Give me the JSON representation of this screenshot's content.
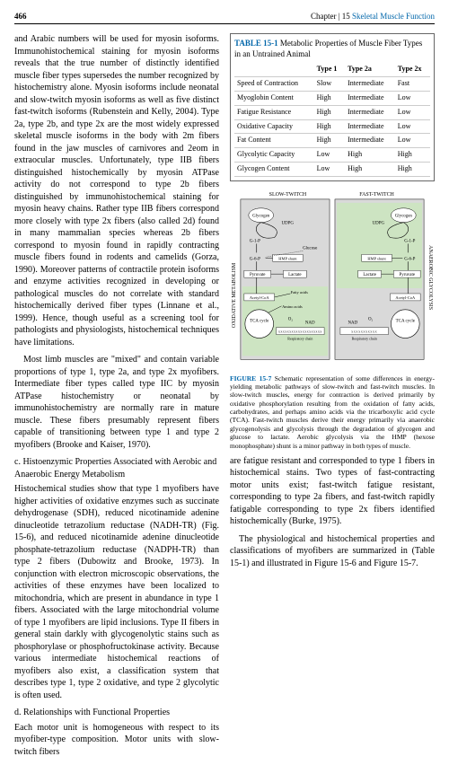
{
  "header": {
    "page_number": "466",
    "chapter_label": "Chapter | 15",
    "chapter_title": "Skeletal Muscle Function"
  },
  "left_column": {
    "para1": "and Arabic numbers will be used for myosin isoforms. Immunohistochemical staining for myosin isoforms reveals that the true number of distinctly identified muscle fiber types supersedes the number recognized by histochemistry alone. Myosin isoforms include neonatal and slow-twitch myosin isoforms as well as five distinct fast-twitch isoforms (Rubenstein and Kelly, 2004). Type 2a, type 2b, and type 2x are the most widely expressed skeletal muscle isoforms in the body with 2m fibers found in the jaw muscles of carnivores and 2eom in extraocular muscles. Unfortunately, type IIB fibers distinguished histochemically by myosin ATPase activity do not correspond to type 2b fibers distinguished by immunohistochemical staining for myosin heavy chains. Rather type IIB fibers correspond more closely with type 2x fibers (also called 2d) found in many mammalian species whereas 2b fibers correspond to myosin found in rapidly contracting muscle fibers found in rodents and camelids (Gorza, 1990). Moreover patterns of contractile protein isoforms and enzyme activities recognized in developing or pathological muscles do not correlate with standard histochemically derived fiber types (Linnane et al., 1999). Hence, though useful as a screening tool for pathologists and physiologists, histochemical techniques have limitations.",
    "para2": "Most limb muscles are \"mixed\" and contain variable proportions of type 1, type 2a, and type 2x myofibers. Intermediate fiber types called type IIC by myosin ATPase histochemistry or neonatal by immunohistochemistry are normally rare in mature muscle. These fibers presumably represent fibers capable of transitioning between type 1 and type 2 myofibers (Brooke and Kaiser, 1970).",
    "subhead_c": "c. Histoenzymic Properties Associated with Aerobic and Anaerobic Energy Metabolism",
    "para3": "Histochemical studies show that type 1 myofibers have higher activities of oxidative enzymes such as succinate dehydrogenase (SDH), reduced nicotinamide adenine dinucleotide tetrazolium reductase (NADH-TR) (Fig. 15-6), and reduced nicotinamide adenine dinucleotide phosphate-tetrazolium reductase (NADPH-TR) than type 2 fibers (Dubowitz and Brooke, 1973). In conjunction with electron microscopic observations, the activities of these enzymes have been localized to mitochondria, which are present in abundance in type 1 fibers. Associated with the large mitochondrial volume of type 1 myofibers are lipid inclusions. Type II fibers in general stain darkly with glycogenolytic stains such as phosphorylase or phosphofructokinase activity. Because various intermediate histochemical reactions of myofibers also exist, a classification system that describes type 1, type 2 oxidative, and type 2 glycolytic is often used.",
    "subhead_d": "d. Relationships with Functional Properties",
    "para4": "Each motor unit is homogeneous with respect to its myofiber-type composition. Motor units with slow-twitch fibers"
  },
  "table": {
    "title_num": "TABLE 15-1",
    "title_text": "Metabolic Properties of Muscle Fiber Types in an Untrained Animal",
    "columns": [
      "",
      "Type 1",
      "Type 2a",
      "Type 2x"
    ],
    "rows": [
      [
        "Speed of Contraction",
        "Slow",
        "Intermediate",
        "Fast"
      ],
      [
        "Myoglobin Content",
        "High",
        "Intermediate",
        "Low"
      ],
      [
        "Fatigue Resistance",
        "High",
        "Intermediate",
        "Low"
      ],
      [
        "Oxidative Capacity",
        "High",
        "Intermediate",
        "Low"
      ],
      [
        "Fat Content",
        "High",
        "Intermediate",
        "Low"
      ],
      [
        "Glycolytic Capacity",
        "Low",
        "High",
        "High"
      ],
      [
        "Glycogen Content",
        "Low",
        "High",
        "High"
      ]
    ]
  },
  "figure": {
    "label_slow": "SLOW-TWITCH",
    "label_fast": "FAST-TWITCH",
    "side_left": "OXIDATIVE METABOLISM",
    "side_right": "ANAEROBIC GLYCOLYSIS",
    "glycogen": "Glycogen",
    "udpg": "UDPG",
    "g1p": "G-1-P",
    "g6p": "G-6-P",
    "glucose": "Glucose",
    "hmp": "HMP shunt",
    "pyruvate": "Pyruvate",
    "lactate": "Lactate",
    "acetyl": "Acetyl-CoA",
    "fatty": "Fatty acids",
    "amino": "Amino acids",
    "o2": "O₂",
    "nad": "NAD",
    "tca": "TCA cycle",
    "resp": "Respiratory chain",
    "xxx1": "XXXXXXXXXXX",
    "xxx2": "XXXXXXXXXXXXXXXXXXXX",
    "number": "FIGURE 15-7",
    "caption": "Schematic representation of some differences in energy-yielding metabolic pathways of slow-twitch and fast-twitch muscles. In slow-twitch muscles, energy for contraction is derived primarily by oxidative phosphorylation resulting from the oxidation of fatty acids, carbohydrates, and perhaps amino acids via the tricarboxylic acid cycle (TCA). Fast-twitch muscles derive their energy primarily via anaerobic glycogenolysis and glycolysis through the degradation of glycogen and glucose to lactate. Aerobic glycolysis via the HMP (hexose monophosphate) shunt is a minor pathway in both types of muscle.",
    "colors": {
      "shade": "#d9d9d9",
      "highlight": "#cde4c2",
      "line": "#000000"
    }
  },
  "right_tail": {
    "para1": "are fatigue resistant and corresponded to type 1 fibers in histochemical stains. Two types of fast-contracting motor units exist; fast-twitch fatigue resistant, corresponding to type 2a fibers, and fast-twitch rapidly fatigable corresponding to type 2x fibers identified histochemically (Burke, 1975).",
    "para2": "The physiological and histochemical properties and classifications of myofibers are summarized in (Table 15-1) and illustrated in Figure 15-6 and Figure 15-7."
  }
}
